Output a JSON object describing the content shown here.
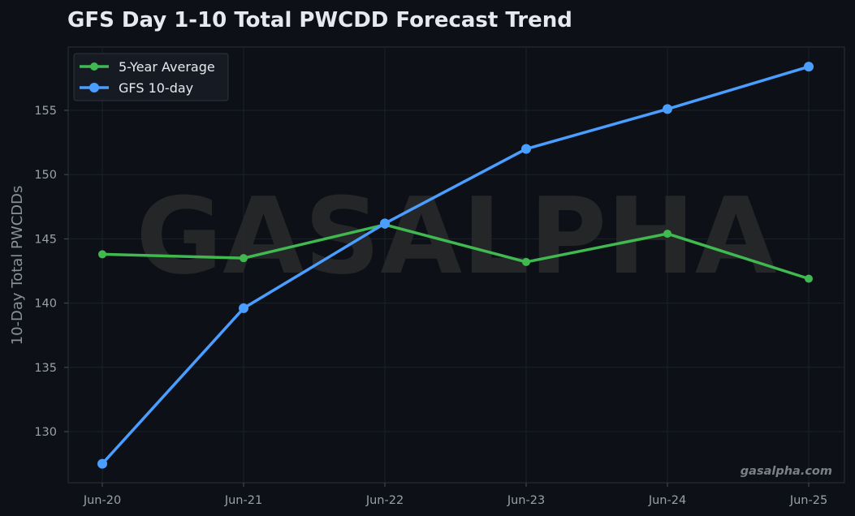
{
  "chart_data": {
    "type": "line",
    "title": "GFS Day 1-10 Total PWCDD Forecast Trend",
    "xlabel": "",
    "ylabel": "10-Day Total PWCDDs",
    "categories": [
      "Jun-20",
      "Jun-21",
      "Jun-22",
      "Jun-23",
      "Jun-24",
      "Jun-25"
    ],
    "ylim": [
      126.0,
      160.0
    ],
    "yticks": [
      130,
      135,
      140,
      145,
      150,
      155
    ],
    "grid": true,
    "legend_position": "top-left",
    "series": [
      {
        "name": "5-Year Average",
        "color": "#3fb950",
        "values": [
          143.8,
          143.5,
          146.1,
          143.2,
          145.4,
          141.9
        ]
      },
      {
        "name": "GFS 10-day",
        "color": "#4a9eff",
        "values": [
          127.5,
          139.6,
          146.2,
          152.0,
          155.1,
          158.4
        ]
      }
    ],
    "watermark": "GASALPHA",
    "credit": "gasalpha.com"
  }
}
